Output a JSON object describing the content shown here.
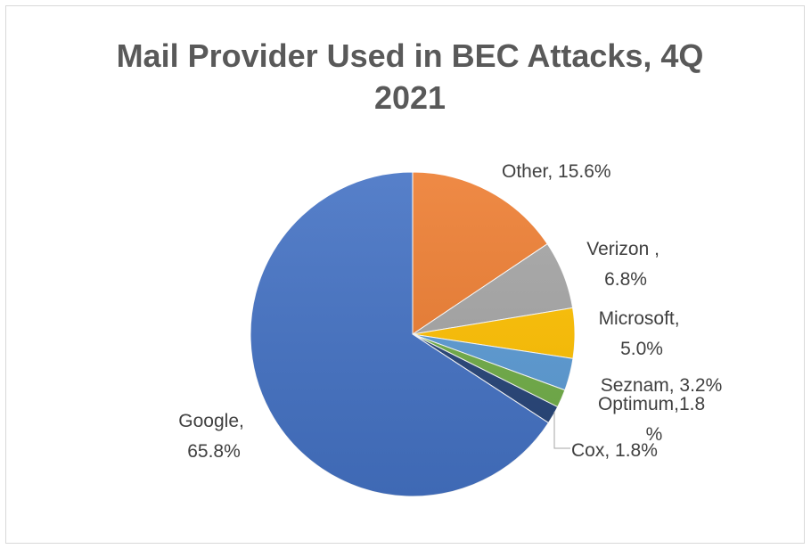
{
  "chart_data": {
    "type": "pie",
    "title_line1": "Mail Provider Used in BEC Attacks, 4Q",
    "title_line2": "2021",
    "slices": [
      {
        "name": "Other",
        "value": 15.6,
        "color": "#ED7D31",
        "label_line1": "Other, 15.6%",
        "label_line2": ""
      },
      {
        "name": "Verizon",
        "value": 6.8,
        "color": "#A5A5A5",
        "label_line1": "Verizon ,",
        "label_line2": "6.8%"
      },
      {
        "name": "Microsoft",
        "value": 5.0,
        "color": "#FFC000",
        "label_line1": "Microsoft,",
        "label_line2": "5.0%"
      },
      {
        "name": "Seznam",
        "value": 3.2,
        "color": "#5B9BD5",
        "label_line1": "Seznam, 3.2%",
        "label_line2": ""
      },
      {
        "name": "Optimum",
        "value": 1.8,
        "color": "#70AD47",
        "label_line1": "Optimum,1.8",
        "label_line2": "%"
      },
      {
        "name": "Cox",
        "value": 1.8,
        "color": "#264478",
        "label_line1": "Cox, 1.8%",
        "label_line2": ""
      },
      {
        "name": "Google",
        "value": 65.8,
        "color": "#4472C4",
        "label_line1": "Google,",
        "label_line2": "65.8%"
      }
    ]
  }
}
